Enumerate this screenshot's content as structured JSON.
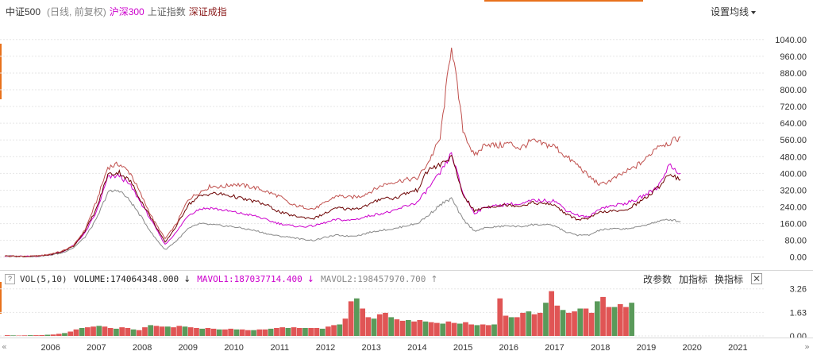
{
  "legend": {
    "title": "中证500",
    "subtitle": "(日线, 前复权)",
    "series": [
      "沪深300",
      "上证指数",
      "深证成指"
    ]
  },
  "ma_setting_label": "设置均线",
  "volume_bar": {
    "help": "?",
    "label": "VOL(5,10)",
    "volume": "VOLUME:174064348.000",
    "volume_arrow": "↓",
    "mavol1": "MAVOL1:187037714.400",
    "mavol1_arrow": "↓",
    "mavol2": "MAVOL2:198457970.700",
    "mavol2_arrow": "↑"
  },
  "tools": {
    "param": "改参数",
    "add": "加指标",
    "switch": "换指标",
    "close": "✕"
  },
  "scroll": {
    "left": "«",
    "right": "»"
  },
  "colors": {
    "zz500": "#c0504d",
    "hs300": "#cc00cc",
    "shanghai": "#888888",
    "shenzhen": "#6b0000",
    "vol_up": "#e05555",
    "vol_down": "#5a9a5a",
    "grid": "#e6e6e6"
  },
  "chart_data": [
    {
      "type": "line",
      "series": [
        {
          "name": "中证500",
          "color": "#c0504d",
          "start": 2005.0,
          "step": 0.25,
          "values": [
            6,
            4,
            3,
            6,
            15,
            28,
            55,
            130,
            265,
            430,
            445,
            400,
            285,
            175,
            88,
            160,
            275,
            310,
            340,
            335,
            350,
            340,
            330,
            310,
            290,
            250,
            240,
            230,
            260,
            295,
            285,
            290,
            315,
            345,
            360,
            370,
            375,
            455,
            565,
            1020,
            610,
            480,
            545,
            530,
            545,
            520,
            555,
            540,
            530,
            480,
            440,
            385,
            345,
            370,
            400,
            430,
            470,
            535,
            545,
            575
          ]
        },
        {
          "name": "沪深300",
          "color": "#cc00cc",
          "start": 2005.0,
          "step": 0.25,
          "values": [
            6,
            4,
            3,
            5,
            12,
            25,
            55,
            115,
            215,
            380,
            390,
            340,
            250,
            155,
            60,
            120,
            200,
            230,
            235,
            225,
            215,
            205,
            195,
            175,
            160,
            150,
            145,
            150,
            165,
            180,
            175,
            185,
            200,
            210,
            220,
            245,
            260,
            330,
            400,
            495,
            305,
            210,
            240,
            245,
            255,
            250,
            270,
            270,
            270,
            225,
            200,
            190,
            235,
            245,
            255,
            270,
            300,
            335,
            440,
            400
          ]
        },
        {
          "name": "上证指数",
          "color": "#888888",
          "start": 2005.0,
          "step": 0.25,
          "values": [
            6,
            4,
            3,
            5,
            10,
            20,
            45,
            95,
            180,
            310,
            320,
            265,
            185,
            100,
            35,
            78,
            135,
            160,
            155,
            150,
            145,
            135,
            125,
            110,
            100,
            95,
            85,
            80,
            95,
            105,
            100,
            105,
            120,
            130,
            135,
            150,
            160,
            200,
            250,
            280,
            180,
            125,
            140,
            145,
            150,
            145,
            155,
            155,
            150,
            120,
            105,
            105,
            130,
            135,
            135,
            140,
            155,
            170,
            180,
            170
          ]
        },
        {
          "name": "深证成指",
          "color": "#6b0000",
          "start": 2005.0,
          "step": 0.25,
          "values": [
            6,
            4,
            3,
            5,
            12,
            25,
            52,
            125,
            230,
            395,
            405,
            360,
            260,
            165,
            70,
            150,
            250,
            290,
            305,
            300,
            290,
            275,
            265,
            245,
            215,
            200,
            190,
            185,
            210,
            235,
            230,
            235,
            255,
            285,
            280,
            305,
            320,
            420,
            440,
            480,
            300,
            220,
            240,
            245,
            250,
            245,
            260,
            255,
            250,
            205,
            180,
            185,
            215,
            220,
            220,
            250,
            285,
            330,
            400,
            370
          ]
        }
      ],
      "y_ticks": [
        "0.00",
        "80.00",
        "160.00",
        "240.00",
        "320.00",
        "400.00",
        "480.00",
        "560.00",
        "640.00",
        "720.00",
        "800.00",
        "880.00",
        "960.00",
        "1040.00"
      ],
      "ylim": [
        -20,
        1100
      ]
    },
    {
      "type": "bar",
      "title": "VOL(5,10)",
      "y_ticks": [
        "0.00",
        "1.63",
        "3.26"
      ],
      "ylim": [
        0,
        3.3
      ],
      "start": 2005.0,
      "step": 0.125,
      "values": [
        0.05,
        0.04,
        0.03,
        0.04,
        0.05,
        0.05,
        0.06,
        0.08,
        0.1,
        0.15,
        0.2,
        0.3,
        0.45,
        0.55,
        0.6,
        0.65,
        0.7,
        0.65,
        0.55,
        0.5,
        0.6,
        0.55,
        0.45,
        0.4,
        0.6,
        0.75,
        0.7,
        0.65,
        0.65,
        0.6,
        0.7,
        0.65,
        0.6,
        0.55,
        0.5,
        0.55,
        0.5,
        0.45,
        0.45,
        0.5,
        0.45,
        0.45,
        0.4,
        0.4,
        0.45,
        0.45,
        0.5,
        0.55,
        0.6,
        0.55,
        0.6,
        0.55,
        0.55,
        0.55,
        0.55,
        0.5,
        0.65,
        0.75,
        0.8,
        1.2,
        2.4,
        2.6,
        1.9,
        1.3,
        1.2,
        1.5,
        1.6,
        1.3,
        1.15,
        1.05,
        1.1,
        1.0,
        1.1,
        1.0,
        0.95,
        0.9,
        0.85,
        1.0,
        0.9,
        0.85,
        0.95,
        0.8,
        0.75,
        0.8,
        0.75,
        0.8,
        2.6,
        1.4,
        1.3,
        1.3,
        1.6,
        1.7,
        1.5,
        1.6,
        2.3,
        3.1,
        2.1,
        1.8,
        1.6,
        1.7,
        1.9,
        1.9,
        1.6,
        2.4,
        2.7,
        2.0,
        2.0,
        2.2,
        2.0,
        2.3
      ]
    }
  ],
  "x_ticks": [
    "2006",
    "2007",
    "2008",
    "2009",
    "2010",
    "2011",
    "2012",
    "2013",
    "2014",
    "2015",
    "2016",
    "2017",
    "2018",
    "2019",
    "2020",
    "2021"
  ]
}
